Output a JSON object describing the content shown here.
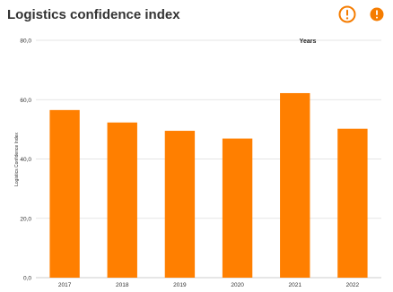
{
  "title": "Logistics confidence index",
  "icons": {
    "warning": "warning-circle-icon",
    "info": "info-circle-icon",
    "accent": "#f57c00"
  },
  "chart_data": {
    "type": "bar",
    "title": "Logistics confidence index",
    "xlabel": "",
    "ylabel": "Logistics Confidence Index",
    "legend_title": "Years",
    "legend_placement": "top-right",
    "categories": [
      "2017",
      "2018",
      "2019",
      "2020",
      "2021",
      "2022"
    ],
    "values": [
      56.5,
      52.3,
      49.5,
      46.9,
      62.2,
      50.2
    ],
    "ylim": [
      0,
      80
    ],
    "yticks": [
      0,
      20,
      40,
      60,
      80
    ],
    "ytick_labels": [
      "0,0",
      "20,0",
      "40,0",
      "60,0",
      "80,0"
    ],
    "grid": true,
    "bar_color": "#ff7f00"
  }
}
